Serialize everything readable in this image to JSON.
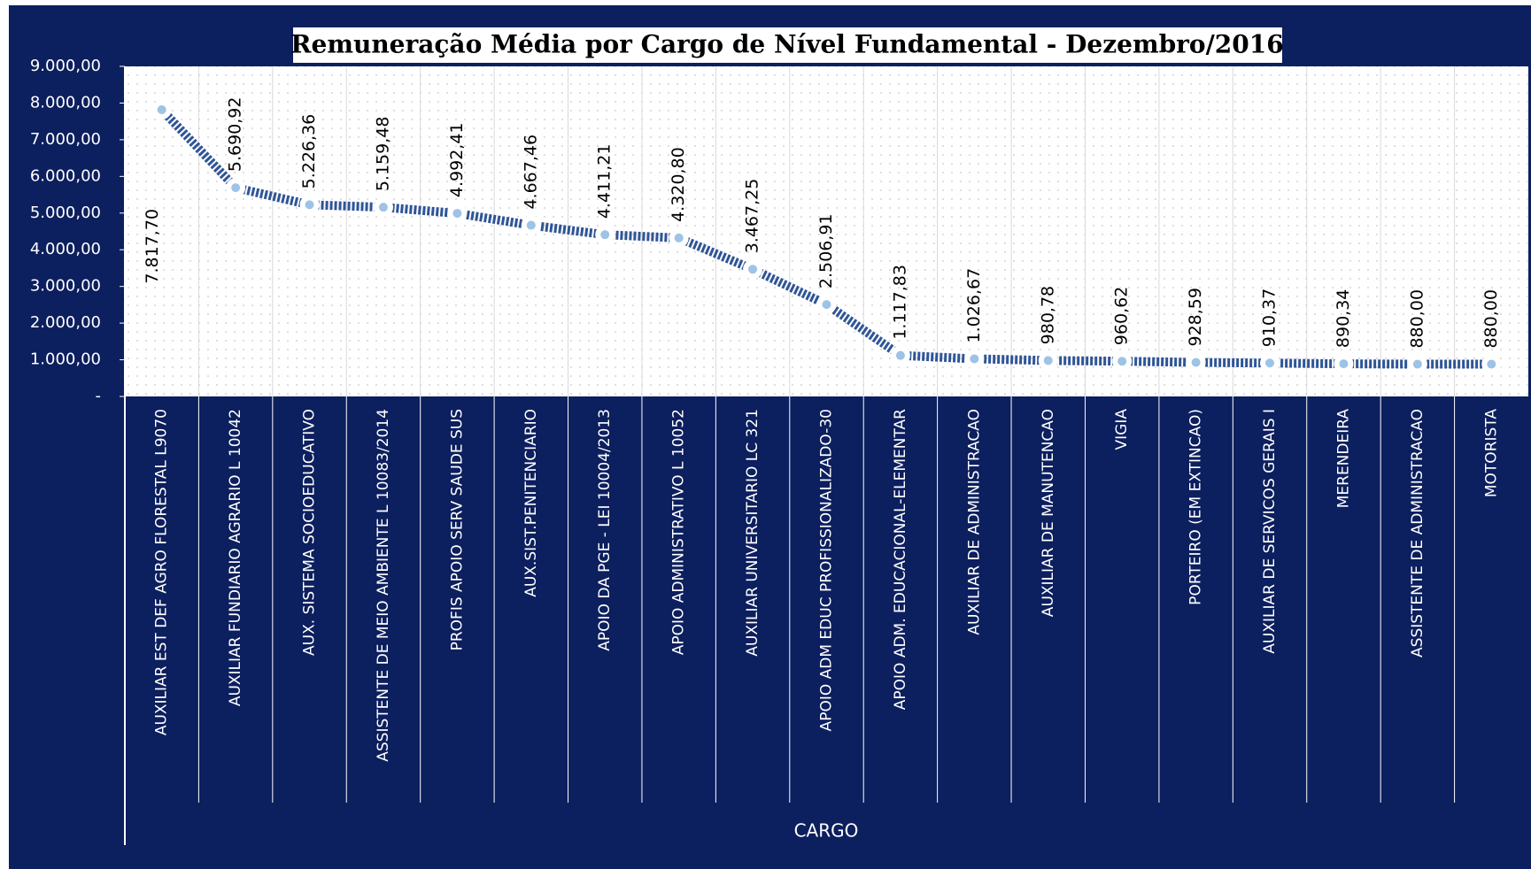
{
  "chart_data": {
    "type": "line",
    "title": "Remuneração Média por Cargo de Nível Fundamental - Dezembro/2016",
    "x_label": "CARGO",
    "categories": [
      "AUXILIAR EST DEF AGRO FLORESTAL L9070",
      "AUXILIAR FUNDIARIO AGRARIO L 10042",
      "AUX. SISTEMA SOCIOEDUCATIVO",
      "ASSISTENTE DE MEIO AMBIENTE L 10083/2014",
      "PROFIS APOIO SERV SAUDE SUS",
      "AUX.SIST.PENITENCIARIO",
      "APOIO DA PGE - LEI 10004/2013",
      "APOIO ADMINISTRATIVO L 10052",
      "AUXILIAR UNIVERSITARIO LC 321",
      "APOIO ADM EDUC PROFISSIONALIZADO-30",
      "APOIO ADM. EDUCACIONAL-ELEMENTAR",
      "AUXILIAR DE ADMINISTRACAO",
      "AUXILIAR DE MANUTENCAO",
      "VIGIA",
      "PORTEIRO (EM EXTINCAO)",
      "AUXILIAR DE SERVICOS GERAIS I",
      "MERENDEIRA",
      "ASSISTENTE DE ADMINISTRACAO",
      "MOTORISTA"
    ],
    "values": [
      7817.7,
      5690.92,
      5226.36,
      5159.48,
      4992.41,
      4667.46,
      4411.21,
      4320.8,
      3467.25,
      2506.91,
      1117.83,
      1026.67,
      980.78,
      960.62,
      928.59,
      910.37,
      890.34,
      880.0,
      880.0
    ],
    "value_labels": [
      "7.817,70",
      "5.690,92",
      "5.226,36",
      "5.159,48",
      "4.992,41",
      "4.667,46",
      "4.411,21",
      "4.320,80",
      "3.467,25",
      "2.506,91",
      "1.117,83",
      "1.026,67",
      "980,78",
      "960,62",
      "928,59",
      "910,37",
      "890,34",
      "880,00",
      "880,00"
    ],
    "color": "#2f5597",
    "ylim": [
      0,
      9000
    ],
    "yticks": [
      {
        "value": 0,
        "label": "-"
      },
      {
        "value": 1000,
        "label": "1.000,00"
      },
      {
        "value": 2000,
        "label": "2.000,00"
      },
      {
        "value": 3000,
        "label": "3.000,00"
      },
      {
        "value": 4000,
        "label": "4.000,00"
      },
      {
        "value": 5000,
        "label": "5.000,00"
      },
      {
        "value": 6000,
        "label": "6.000,00"
      },
      {
        "value": 7000,
        "label": "7.000,00"
      },
      {
        "value": 8000,
        "label": "8.000,00"
      },
      {
        "value": 9000,
        "label": "9.000,00"
      }
    ],
    "grid": true
  }
}
